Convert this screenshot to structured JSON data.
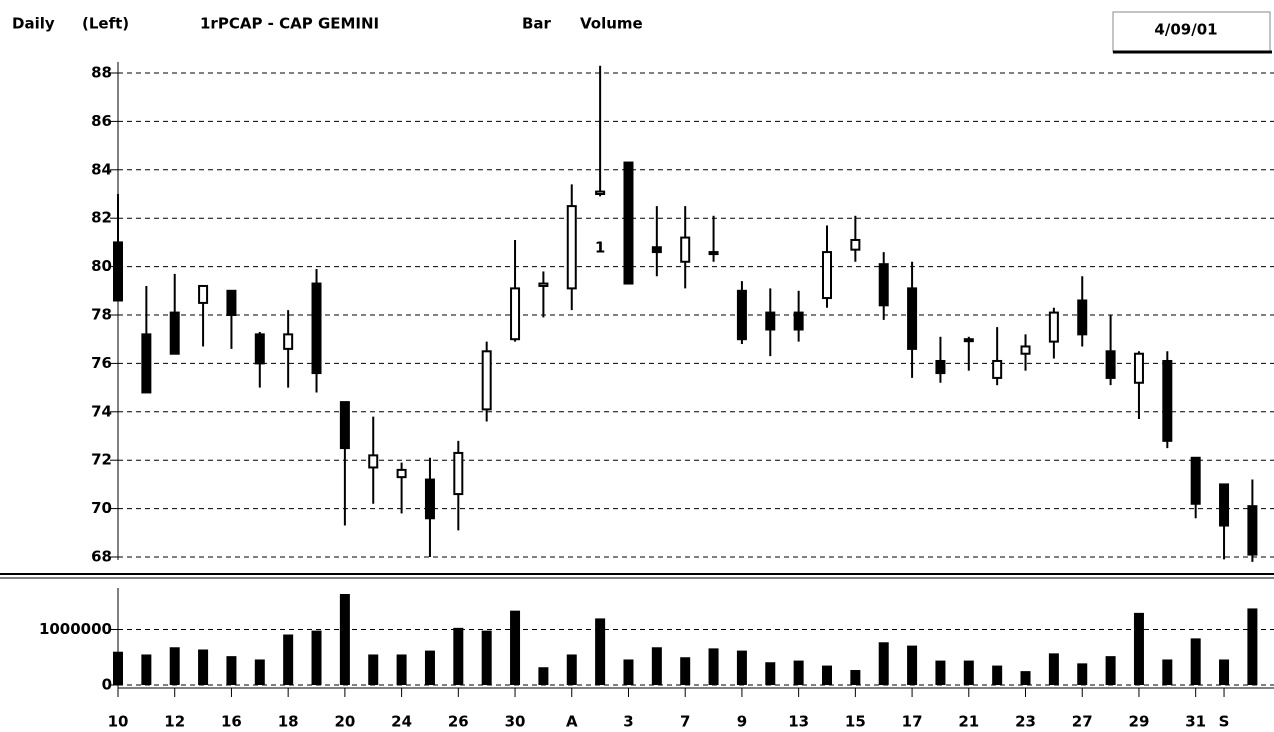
{
  "header": {
    "period": "Daily",
    "axis_side": "(Left)",
    "chart_style": "Bar",
    "panel": "Volume",
    "date": "4/09/01"
  },
  "chart_data": [
    {
      "type": "candlestick",
      "title": "1rPCAP - CAP GEMINI",
      "color": "#000000",
      "open": [
        81,
        77.2,
        78.1,
        78.5,
        79,
        77.2,
        76.6,
        79.3,
        74.4,
        71.7,
        71.3,
        71.2,
        70.6,
        74.1,
        77,
        79.2,
        79.1,
        83,
        84.3,
        80.8,
        80.2,
        80.6,
        79,
        78.1,
        78.1,
        78.7,
        80.7,
        80.1,
        79.1,
        76.1,
        77,
        75.4,
        76.4,
        76.9,
        78.6,
        76.5,
        75.2,
        76.1,
        72.1,
        71,
        70.1
      ],
      "high": [
        83,
        79.2,
        79.7,
        79.2,
        79,
        77.3,
        78.2,
        79.9,
        74.4,
        73.8,
        71.9,
        72.1,
        72.8,
        76.9,
        81.1,
        79.8,
        83.4,
        88.3,
        84.3,
        82.5,
        82.5,
        82.1,
        79.4,
        79.1,
        79,
        81.7,
        82.1,
        80.6,
        80.2,
        77.1,
        77.1,
        77.5,
        77.2,
        78.3,
        79.6,
        78,
        76.5,
        76.5,
        72.1,
        71,
        71.2
      ],
      "low": [
        78.6,
        74.8,
        76.4,
        76.7,
        76.6,
        75,
        75,
        74.8,
        69.3,
        70.2,
        69.8,
        68,
        69.1,
        73.6,
        76.9,
        77.9,
        78.2,
        82.9,
        79.3,
        79.6,
        79.1,
        80.2,
        76.8,
        76.3,
        76.9,
        78.3,
        80.2,
        77.8,
        75.4,
        75.2,
        75.7,
        75.1,
        75.7,
        76.2,
        76.7,
        75.1,
        73.7,
        72.5,
        69.6,
        67.9,
        67.8
      ],
      "close": [
        78.6,
        74.8,
        76.4,
        79.2,
        78,
        76,
        77.2,
        75.6,
        72.5,
        72.2,
        71.6,
        69.6,
        72.3,
        76.5,
        79.1,
        79.3,
        82.5,
        83.1,
        79.3,
        80.6,
        81.2,
        80.6,
        77,
        77.4,
        77.4,
        80.6,
        81.1,
        78.4,
        76.6,
        75.6,
        77,
        76.1,
        76.7,
        78.1,
        77.2,
        75.4,
        76.4,
        72.8,
        70.2,
        69.3,
        68.1
      ],
      "annotation": "1",
      "ylim": [
        68,
        88
      ],
      "yticks": [
        68,
        70,
        72,
        74,
        76,
        78,
        80,
        82,
        84,
        86,
        88
      ],
      "grid": true
    },
    {
      "type": "bar",
      "color": "#000000",
      "categories": [
        "10",
        null,
        "12",
        null,
        "16",
        null,
        "18",
        null,
        "20",
        null,
        "24",
        null,
        "26",
        null,
        "30",
        null,
        "A",
        null,
        "3",
        null,
        "7",
        null,
        "9",
        null,
        "13",
        null,
        "15",
        null,
        "17",
        null,
        "21",
        null,
        "23",
        null,
        "27",
        null,
        "29",
        null,
        "31",
        "S",
        null
      ],
      "values": [
        600000,
        550000,
        680000,
        640000,
        520000,
        460000,
        910000,
        980000,
        1640000,
        550000,
        550000,
        620000,
        1030000,
        980000,
        1340000,
        320000,
        550000,
        1200000,
        460000,
        680000,
        500000,
        660000,
        620000,
        410000,
        440000,
        350000,
        270000,
        770000,
        710000,
        440000,
        440000,
        350000,
        250000,
        570000,
        390000,
        520000,
        1300000,
        460000,
        840000,
        460000,
        1380000
      ],
      "ylim": [
        0,
        1730000
      ],
      "yticks": [
        0,
        1000000
      ],
      "grid": true
    }
  ]
}
